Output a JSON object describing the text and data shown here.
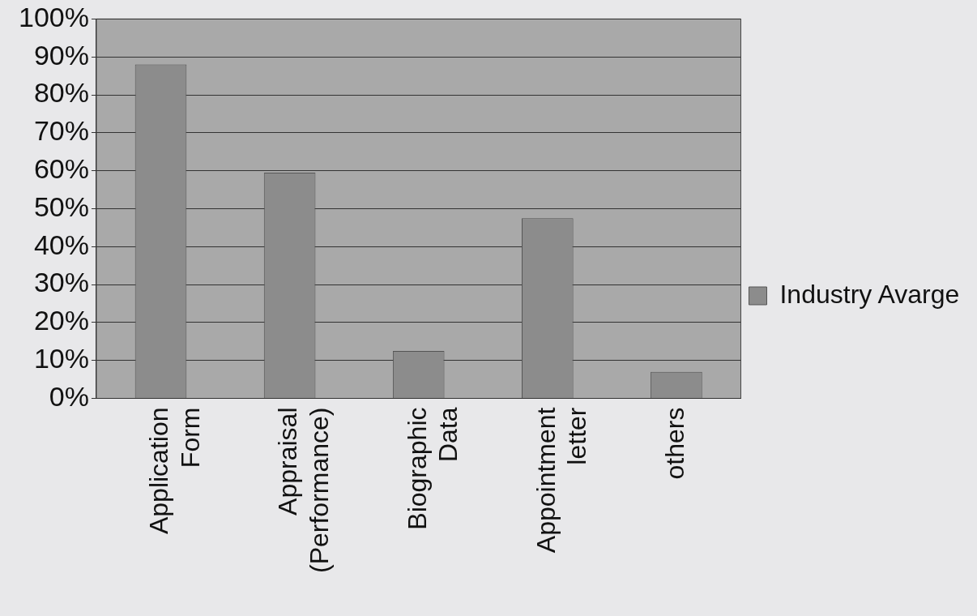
{
  "chart_data": {
    "type": "bar",
    "categories": [
      "Application Form",
      "Appraisal (Performance)",
      "Biographic Data",
      "Appointment letter",
      "others"
    ],
    "series": [
      {
        "name": "Industry Avarge",
        "color": "#8c8c8c",
        "values": [
          88,
          59.5,
          12.5,
          47.5,
          7
        ]
      }
    ],
    "ylim": [
      0,
      100
    ],
    "yticks": [
      {
        "value": 0,
        "label": "0%"
      },
      {
        "value": 10,
        "label": "10%"
      },
      {
        "value": 20,
        "label": "20%"
      },
      {
        "value": 30,
        "label": "30%"
      },
      {
        "value": 40,
        "label": "40%"
      },
      {
        "value": 50,
        "label": "50%"
      },
      {
        "value": 60,
        "label": "60%"
      },
      {
        "value": 70,
        "label": "70%"
      },
      {
        "value": 80,
        "label": "80%"
      },
      {
        "value": 90,
        "label": "90%"
      },
      {
        "value": 100,
        "label": "100%"
      }
    ],
    "grid": "y",
    "legend": "right"
  }
}
